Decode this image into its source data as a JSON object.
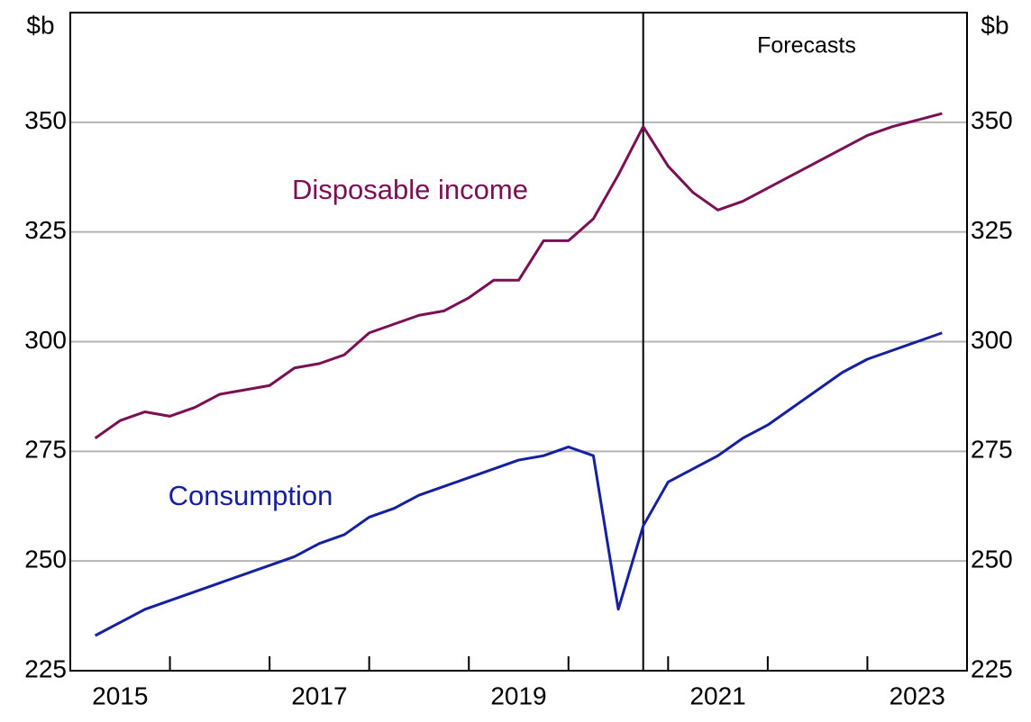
{
  "chart_data": {
    "type": "line",
    "left_unit": "$b",
    "right_unit": "$b",
    "annotation": "Forecasts",
    "forecast_start": 2020.25,
    "x": [
      2014.75,
      2015,
      2015.25,
      2015.5,
      2015.75,
      2016,
      2016.25,
      2016.5,
      2016.75,
      2017,
      2017.25,
      2017.5,
      2017.75,
      2018,
      2018.25,
      2018.5,
      2018.75,
      2019,
      2019.25,
      2019.5,
      2019.75,
      2020,
      2020.25,
      2020.5,
      2020.75,
      2021,
      2021.25,
      2021.5,
      2021.75,
      2022,
      2022.25,
      2022.5,
      2022.75,
      2023,
      2023.25
    ],
    "series": [
      {
        "name": "Disposable income",
        "color": "#7a0f54",
        "values": [
          278,
          282,
          284,
          283,
          285,
          288,
          289,
          290,
          294,
          295,
          297,
          302,
          304,
          306,
          307,
          310,
          314,
          314,
          323,
          323,
          328,
          338,
          349,
          340,
          334,
          330,
          332,
          335,
          338,
          341,
          344,
          347,
          349,
          350.5,
          352
        ]
      },
      {
        "name": "Consumption",
        "color": "#1420a0",
        "values": [
          233,
          236,
          239,
          241,
          243,
          245,
          247,
          249,
          251,
          254,
          256,
          260,
          262,
          265,
          267,
          269,
          271,
          273,
          274,
          276,
          274,
          239,
          258,
          268,
          271,
          274,
          278,
          281,
          285,
          289,
          293,
          296,
          298,
          300,
          302
        ]
      }
    ],
    "xlim": [
      2014.5,
      2023.5
    ],
    "xticks": [
      2015,
      2017,
      2019,
      2021,
      2023
    ],
    "x_tick_marks": [
      2015.5,
      2016.5,
      2017.5,
      2018.5,
      2019.5,
      2020.5,
      2021.5,
      2022.5
    ],
    "ylim": [
      225,
      375
    ],
    "yticks": [
      225,
      250,
      275,
      300,
      325,
      350
    ],
    "grid": true
  }
}
